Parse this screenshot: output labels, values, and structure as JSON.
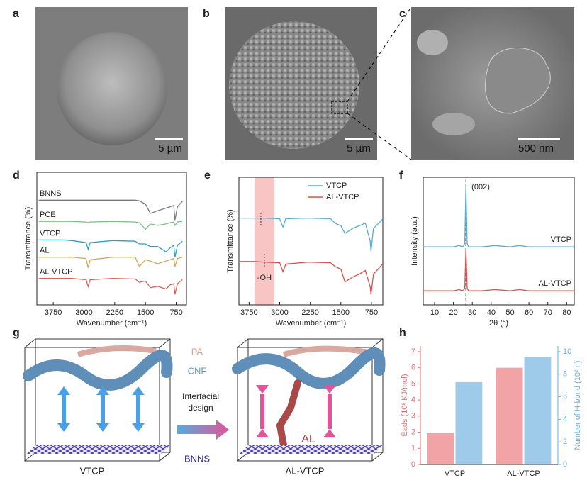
{
  "panels": {
    "a": {
      "label": "a",
      "scale_bar": "5 µm"
    },
    "b": {
      "label": "b",
      "scale_bar": "5 µm"
    },
    "c": {
      "label": "c",
      "scale_bar": "500 nm"
    },
    "d": {
      "label": "d"
    },
    "e": {
      "label": "e"
    },
    "f": {
      "label": "f"
    },
    "g": {
      "label": "g",
      "left_caption": "VTCP",
      "right_caption": "AL-VTCP",
      "pa": "PA",
      "cnf": "CNF",
      "bnns": "BNNS",
      "al": "AL",
      "arrow_text": [
        "Interfacial",
        "design"
      ]
    },
    "h": {
      "label": "h"
    }
  },
  "chart_data": [
    {
      "type": "line",
      "xlabel": "Wavenumber (cm⁻¹)",
      "ylabel": "Transmittance (%)",
      "xlim": [
        4150,
        500
      ],
      "xticks": [
        3750,
        3000,
        2250,
        1500,
        750
      ],
      "ylim": [
        0,
        100
      ],
      "x": [
        4100,
        3500,
        3300,
        2950,
        2900,
        2850,
        2300,
        1750,
        1650,
        1500,
        1380,
        1200,
        1000,
        900,
        810,
        780,
        720,
        600
      ],
      "series": [
        {
          "name": "BNNS",
          "color": "#7a7a7a",
          "values": [
            79,
            79,
            79,
            79,
            79,
            79,
            79,
            79,
            78.5,
            76,
            69,
            71,
            73,
            74,
            75,
            64,
            74,
            78
          ]
        },
        {
          "name": "PCE",
          "color": "#7cbf84",
          "values": [
            63,
            63,
            63,
            62.5,
            62,
            62.5,
            63,
            62.5,
            62,
            57,
            61,
            60,
            61,
            62,
            62.5,
            60,
            62.5,
            63
          ]
        },
        {
          "name": "VTCP",
          "color": "#2f9fbf",
          "values": [
            49,
            49,
            48.5,
            47,
            42,
            47,
            48.5,
            48,
            46,
            46,
            44,
            44,
            40,
            43,
            45,
            36,
            45,
            48
          ]
        },
        {
          "name": "AL",
          "color": "#d9a55a",
          "values": [
            36,
            36,
            36,
            35,
            28,
            34,
            36,
            36,
            29,
            34,
            33,
            31,
            33,
            34,
            35,
            29,
            35,
            36
          ]
        },
        {
          "name": "AL-VTCP",
          "color": "#d9605a",
          "values": [
            20,
            20,
            20,
            19,
            14,
            19,
            20,
            19.5,
            17,
            18,
            13,
            14,
            12,
            15,
            16,
            8,
            16,
            19
          ]
        }
      ]
    },
    {
      "type": "line",
      "xlabel": "Wavenumber (cm⁻¹)",
      "ylabel": "Transmittance (%)",
      "xlim": [
        4000,
        470
      ],
      "xticks": [
        3750,
        3000,
        2250,
        1500,
        750
      ],
      "ylim": [
        0,
        100
      ],
      "highlight": [
        3620,
        3130
      ],
      "annotation": "-OH",
      "legend": "upper right",
      "x": [
        4000,
        3600,
        3400,
        3000,
        2920,
        2850,
        2300,
        1750,
        1640,
        1500,
        1400,
        1200,
        1050,
        900,
        780,
        760,
        700,
        480
      ],
      "series": [
        {
          "name": "VTCP",
          "color": "#5aaad8",
          "values": [
            68,
            68,
            68,
            67.5,
            61,
            67.5,
            68,
            67.5,
            64,
            62,
            56,
            60,
            62,
            64,
            50,
            42,
            60,
            67
          ]
        },
        {
          "name": "AL-VTCP",
          "color": "#d9534f",
          "values": [
            34,
            34,
            33.5,
            33,
            26,
            32,
            33.5,
            33,
            30,
            28,
            18,
            22,
            24,
            27,
            14,
            8,
            24,
            32
          ]
        }
      ]
    },
    {
      "type": "line",
      "xlabel": "2θ (°)",
      "ylabel": "Intensity (a.u.)",
      "xlim": [
        4,
        84
      ],
      "xticks": [
        10,
        20,
        30,
        40,
        50,
        60,
        70,
        80
      ],
      "ylim": [
        0,
        100
      ],
      "peak_x": 26.6,
      "annotation": "(002)",
      "x": [
        4,
        20,
        23,
        25,
        26,
        26.6,
        27.3,
        28,
        35,
        42,
        50,
        55,
        60,
        70,
        84
      ],
      "series": [
        {
          "name": "VTCP",
          "color": "#5aaad8",
          "values": [
            45.5,
            45.5,
            46.5,
            45.5,
            48,
            93,
            48,
            45.5,
            45.5,
            46.5,
            45.5,
            46.5,
            45.5,
            45.5,
            45.5
          ]
        },
        {
          "name": "AL-VTCP",
          "color": "#d9534f",
          "values": [
            11,
            11,
            12,
            11,
            13,
            44,
            13,
            11,
            11,
            12,
            11,
            12,
            11,
            11,
            11
          ]
        }
      ]
    },
    {
      "type": "bar",
      "categories": [
        "VTCP",
        "AL-VTCP"
      ],
      "ylabel": "Eads (10² KJ/mol)",
      "y2label": "Number of H-bond (10² n)",
      "ylim": [
        0,
        7.35
      ],
      "yticks": [
        0,
        1,
        2,
        3,
        4,
        5,
        6,
        7
      ],
      "y2lim": [
        0,
        10.5
      ],
      "y2ticks": [
        0,
        2,
        4,
        6,
        8,
        10
      ],
      "series": [
        {
          "name": "Eads",
          "color": "#f2a3a6",
          "values": [
            1.95,
            6.0
          ]
        },
        {
          "name": "Number of H-bond",
          "color": "#9ecbea",
          "axis": "y2",
          "values": [
            7.3,
            9.5
          ]
        }
      ]
    }
  ]
}
